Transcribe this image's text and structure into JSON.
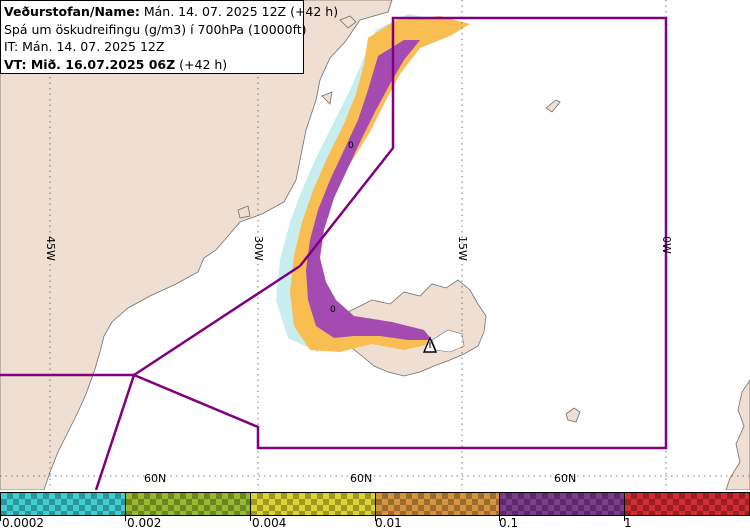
{
  "header": {
    "line1_bold": "Veðurstofan/Name:",
    "line1_rest": " Mán. 14. 07. 2025 12Z (+42 h)",
    "line2": "Spá um öskudreifingu (g/m3) í 700hPa (10000ft)",
    "line3": "IT: Mán. 14. 07. 2025 12Z",
    "line4_bold": "VT: Mið. 16.07.2025 06Z",
    "line4_rest": " (+42 h)"
  },
  "map": {
    "meridian_labels": [
      "45W",
      "30W",
      "15W",
      "0W"
    ],
    "parallel_labels": [
      "60N",
      "60N",
      "60N"
    ],
    "contour_labels": [
      "0",
      "0"
    ],
    "colors": {
      "land": "#efdfd2",
      "sea": "#ffffff",
      "fir_boundary": "#800080",
      "ash_low": "#f9be52",
      "ash_high": "#a44bb2",
      "ash_fringe": "#b9e9ea"
    },
    "volcano_icon": "volcano-warning-icon"
  },
  "legend": {
    "bins": [
      {
        "label": "0.0002",
        "color": "#3fcfd2"
      },
      {
        "label": "0.002",
        "color": "#98ba2f"
      },
      {
        "label": "0.004",
        "color": "#dbd432"
      },
      {
        "label": "0.01",
        "color": "#d7943e"
      },
      {
        "label": "0.1",
        "color": "#7e3c8f"
      },
      {
        "label": "1",
        "color": "#d52b32"
      }
    ]
  }
}
